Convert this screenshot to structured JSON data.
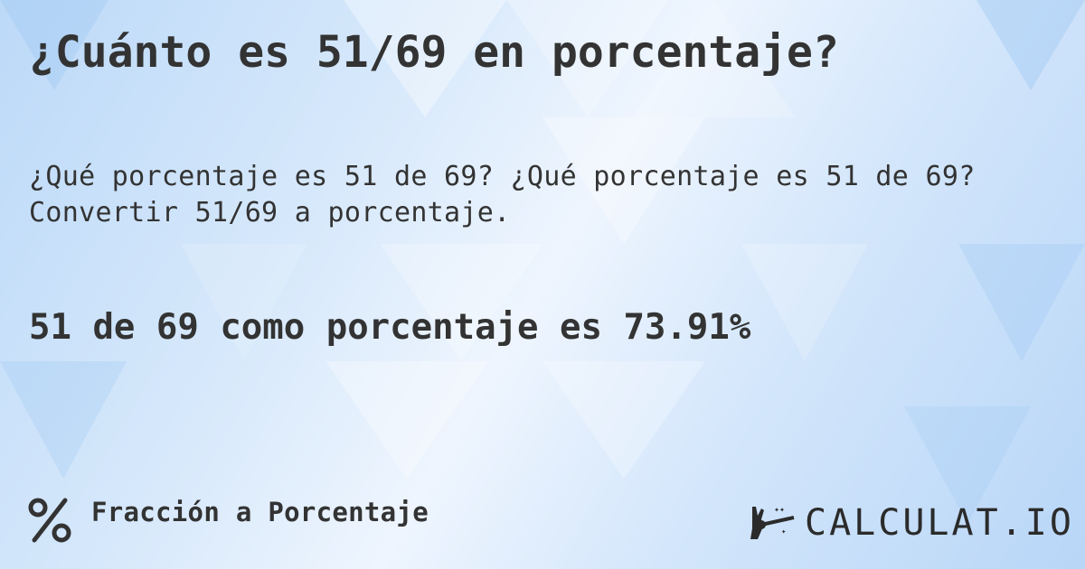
{
  "title": "¿Cuánto es 51/69 en porcentaje?",
  "subtitle_line1": "¿Qué porcentaje es 51 de 69? ¿Qué porcentaje es 51 de 69?",
  "subtitle_line2": "Convertir 51/69 a porcentaje.",
  "result": "51 de 69 como porcentaje es 73.91%",
  "footer": {
    "category_icon": "percent-icon",
    "category_label": "Fracción a Porcentaje"
  },
  "logo": {
    "text": "CALCULAT.IO",
    "icon": "magic-hand-wand-icon"
  },
  "colors": {
    "text": "#333333",
    "background": "#d6e8fb"
  }
}
